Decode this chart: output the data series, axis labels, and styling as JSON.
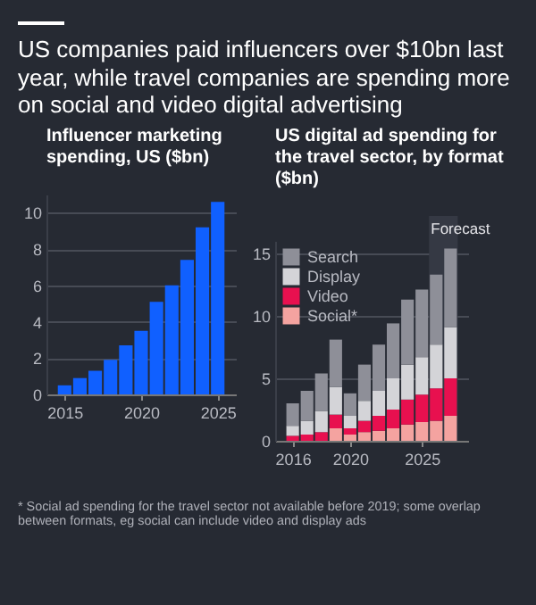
{
  "chart_data": [
    {
      "type": "bar",
      "title": "US companies paid influencers over $10bn last year, while travel companies are spending more on social and video digital advertising",
      "subtitle": "Influencer marketing spending, US ($bn)",
      "x": [
        2015,
        2016,
        2017,
        2018,
        2019,
        2020,
        2021,
        2022,
        2023,
        2024,
        2025
      ],
      "values": [
        0.5,
        0.9,
        1.3,
        1.9,
        2.7,
        3.5,
        5.1,
        6.0,
        7.4,
        9.2,
        10.6
      ],
      "color": "#1060ff",
      "xlim": [
        2014.4,
        2025.6
      ],
      "xticks": [
        2015,
        2020,
        2025
      ],
      "ylim": [
        0,
        11
      ],
      "yticks": [
        0,
        2,
        4,
        6,
        8,
        10
      ],
      "grid": "y"
    },
    {
      "type": "bar",
      "stacked": true,
      "title": "US digital ad spending for the travel sector, by format ($bn)",
      "x": [
        2016,
        2017,
        2018,
        2019,
        2020,
        2021,
        2022,
        2023,
        2024,
        2025,
        2026,
        2027
      ],
      "series": [
        {
          "name": "Social*",
          "color": "#f4a3a0",
          "values": [
            null,
            null,
            null,
            1.0,
            0.5,
            0.7,
            0.8,
            1.0,
            1.3,
            1.5,
            1.6,
            2.0
          ]
        },
        {
          "name": "Video",
          "color": "#e8104f",
          "values": [
            0.4,
            0.5,
            0.7,
            1.1,
            0.5,
            0.9,
            1.2,
            1.5,
            2.0,
            2.2,
            2.6,
            3.0
          ]
        },
        {
          "name": "Display",
          "color": "#d4d4d8",
          "values": [
            0.8,
            1.1,
            1.7,
            2.2,
            1.0,
            1.6,
            2.0,
            2.5,
            2.8,
            3.0,
            3.5,
            4.1
          ]
        },
        {
          "name": "Search",
          "color": "#8e8f98",
          "values": [
            1.8,
            2.4,
            3.0,
            3.8,
            1.8,
            2.9,
            3.7,
            4.4,
            5.2,
            5.4,
            5.6,
            6.3
          ]
        }
      ],
      "xlim": [
        2015.4,
        2027.6
      ],
      "xticks": [
        2016,
        2020,
        2025
      ],
      "ylim": [
        0,
        16
      ],
      "yticks": [
        0,
        5,
        10,
        15
      ],
      "grid": "y",
      "legend": "top left",
      "bands": [
        {
          "axis": "x",
          "from": 2025.5,
          "to": 2027.5,
          "label": "Forecast",
          "color": "#353944"
        }
      ],
      "annotations": [
        "* Social ad spending for the travel sector not available before 2019; some overlap between formats, eg social can include video and display ads"
      ]
    }
  ]
}
